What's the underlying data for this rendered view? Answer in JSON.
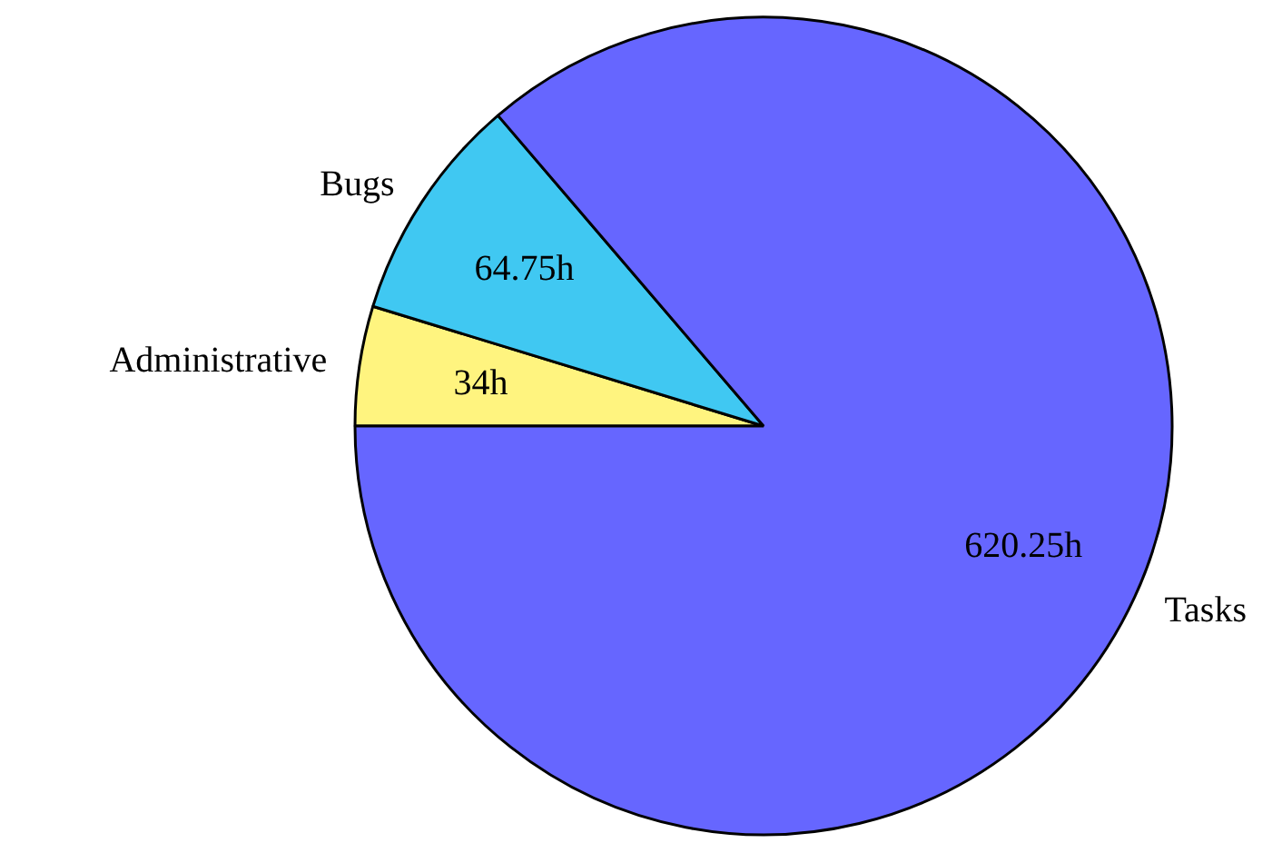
{
  "chart_data": {
    "type": "pie",
    "categories": [
      "Administrative",
      "Bugs",
      "Tasks"
    ],
    "values": [
      34,
      64.75,
      620.25
    ],
    "colors": [
      "#fff47f",
      "#40c8f2",
      "#6666ff"
    ],
    "value_labels": [
      "34h",
      "64.75h",
      "620.25h"
    ]
  }
}
